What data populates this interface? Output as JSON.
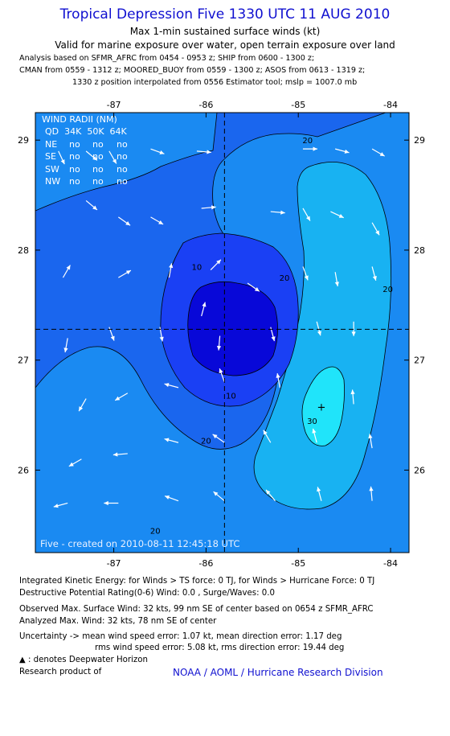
{
  "header": {
    "title": "Tropical Depression Five 1330 UTC 11 AUG 2010",
    "subtitle1": "Max 1-min sustained surface winds (kt)",
    "subtitle2": "Valid for marine exposure over water, open terrain exposure over land",
    "analysis1": "Analysis based on SFMR_AFRC from 0454 - 0953 z; SHIP from 0600 - 1300 z;",
    "analysis2": "CMAN from 0559 - 1312 z; MOORED_BUOY from 0559 - 1300 z; ASOS from 0613 - 1319 z;",
    "analysis3": "1330 z position interpolated from 0556 Estimator tool; mslp = 1007.0 mb"
  },
  "wind_radii": {
    "header1": "WIND RADII (NM)",
    "header2": "QD  34K  50K  64K",
    "rows": [
      {
        "q": "NE",
        "k34": "no",
        "k50": "no",
        "k64": "no"
      },
      {
        "q": "SE",
        "k34": "no",
        "k50": "no",
        "k64": "no"
      },
      {
        "q": "SW",
        "k34": "no",
        "k50": "no",
        "k64": "no"
      },
      {
        "q": "NW",
        "k34": "no",
        "k50": "no",
        "k64": "no"
      }
    ]
  },
  "stamp": "Five - created on 2010-08-11 12:45:18 UTC",
  "chart_data": {
    "type": "heatmap",
    "xlim": [
      -87.85,
      -83.8
    ],
    "ylim": [
      25.25,
      29.25
    ],
    "x_ticks": [
      -87,
      -86,
      -85,
      -84
    ],
    "x_tick_labels": [
      "-87",
      "-86",
      "-85",
      "-84"
    ],
    "y_ticks": [
      26,
      27,
      28,
      29
    ],
    "y_tick_labels": [
      "26",
      "27",
      "28",
      "29"
    ],
    "center": {
      "lon": -85.8,
      "lat": 27.28
    },
    "max_wind_marker": {
      "lon": -84.75,
      "lat": 26.57
    },
    "contour_levels": [
      10,
      20,
      30
    ],
    "contour_labels": [
      {
        "text": "20",
        "lon": -84.9,
        "lat": 29.0
      },
      {
        "text": "10",
        "lon": -86.1,
        "lat": 27.85
      },
      {
        "text": "20",
        "lon": -85.15,
        "lat": 27.75
      },
      {
        "text": "20",
        "lon": -84.03,
        "lat": 27.65
      },
      {
        "text": "10",
        "lon": -85.73,
        "lat": 26.68
      },
      {
        "text": "20",
        "lon": -86.0,
        "lat": 26.27
      },
      {
        "text": "30",
        "lon": -84.85,
        "lat": 26.45
      },
      {
        "text": "20",
        "lon": -86.55,
        "lat": 25.45
      }
    ],
    "level_colors": {
      "lt10": "#0808d8",
      "10_15": "#1a40f4",
      "15_20": "#1a66ee",
      "20_25": "#1a8af2",
      "25_30": "#18b2f2",
      "gt30": "#20e4fa"
    },
    "wind_vectors": [
      {
        "lon": -87.6,
        "lat": 28.9,
        "deg": 155
      },
      {
        "lon": -87.3,
        "lat": 28.9,
        "deg": 130
      },
      {
        "lon": -87.05,
        "lat": 28.9,
        "deg": 150
      },
      {
        "lon": -86.6,
        "lat": 28.92,
        "deg": 110
      },
      {
        "lon": -86.1,
        "lat": 28.9,
        "deg": 95
      },
      {
        "lon": -84.95,
        "lat": 28.92,
        "deg": 90
      },
      {
        "lon": -84.6,
        "lat": 28.92,
        "deg": 105
      },
      {
        "lon": -84.2,
        "lat": 28.92,
        "deg": 120
      },
      {
        "lon": -87.3,
        "lat": 28.45,
        "deg": 130
      },
      {
        "lon": -86.95,
        "lat": 28.3,
        "deg": 125
      },
      {
        "lon": -86.6,
        "lat": 28.3,
        "deg": 120
      },
      {
        "lon": -86.05,
        "lat": 28.38,
        "deg": 85
      },
      {
        "lon": -85.3,
        "lat": 28.35,
        "deg": 95
      },
      {
        "lon": -84.95,
        "lat": 28.38,
        "deg": 150
      },
      {
        "lon": -84.65,
        "lat": 28.35,
        "deg": 115
      },
      {
        "lon": -84.2,
        "lat": 28.25,
        "deg": 150
      },
      {
        "lon": -87.55,
        "lat": 27.75,
        "deg": 30
      },
      {
        "lon": -86.95,
        "lat": 27.75,
        "deg": 60
      },
      {
        "lon": -86.4,
        "lat": 27.75,
        "deg": 10
      },
      {
        "lon": -85.95,
        "lat": 27.82,
        "deg": 45
      },
      {
        "lon": -85.55,
        "lat": 27.7,
        "deg": 125
      },
      {
        "lon": -84.95,
        "lat": 27.85,
        "deg": 160
      },
      {
        "lon": -84.6,
        "lat": 27.8,
        "deg": 170
      },
      {
        "lon": -84.2,
        "lat": 27.85,
        "deg": 165
      },
      {
        "lon": -87.5,
        "lat": 27.2,
        "deg": 190
      },
      {
        "lon": -87.05,
        "lat": 27.3,
        "deg": 160
      },
      {
        "lon": -86.5,
        "lat": 27.3,
        "deg": 170
      },
      {
        "lon": -86.05,
        "lat": 27.4,
        "deg": 15
      },
      {
        "lon": -85.85,
        "lat": 27.22,
        "deg": 185
      },
      {
        "lon": -85.3,
        "lat": 27.3,
        "deg": 165
      },
      {
        "lon": -84.8,
        "lat": 27.35,
        "deg": 165
      },
      {
        "lon": -84.4,
        "lat": 27.35,
        "deg": 180
      },
      {
        "lon": -87.3,
        "lat": 26.65,
        "deg": 210
      },
      {
        "lon": -86.85,
        "lat": 26.7,
        "deg": 240
      },
      {
        "lon": -86.3,
        "lat": 26.75,
        "deg": 285
      },
      {
        "lon": -85.8,
        "lat": 26.8,
        "deg": 340
      },
      {
        "lon": -85.2,
        "lat": 26.75,
        "deg": 350
      },
      {
        "lon": -84.4,
        "lat": 26.6,
        "deg": 355
      },
      {
        "lon": -87.35,
        "lat": 26.1,
        "deg": 240
      },
      {
        "lon": -86.85,
        "lat": 26.15,
        "deg": 265
      },
      {
        "lon": -86.3,
        "lat": 26.25,
        "deg": 285
      },
      {
        "lon": -85.8,
        "lat": 26.25,
        "deg": 305
      },
      {
        "lon": -85.3,
        "lat": 26.25,
        "deg": 330
      },
      {
        "lon": -84.8,
        "lat": 26.25,
        "deg": 345
      },
      {
        "lon": -84.2,
        "lat": 26.2,
        "deg": 350
      },
      {
        "lon": -87.5,
        "lat": 25.7,
        "deg": 255
      },
      {
        "lon": -86.95,
        "lat": 25.7,
        "deg": 270
      },
      {
        "lon": -86.3,
        "lat": 25.72,
        "deg": 290
      },
      {
        "lon": -85.8,
        "lat": 25.72,
        "deg": 310
      },
      {
        "lon": -85.25,
        "lat": 25.72,
        "deg": 320
      },
      {
        "lon": -84.75,
        "lat": 25.72,
        "deg": 345
      },
      {
        "lon": -84.2,
        "lat": 25.72,
        "deg": 355
      }
    ]
  },
  "footer": {
    "ike": "Integrated Kinetic Energy:  for Winds > TS force: 0 TJ,  for Winds > Hurricane Force: 0 TJ",
    "dpr": "Destructive Potential Rating(0-6)   Wind: 0.0 , Surge/Waves: 0.0",
    "obs": "Observed Max. Surface Wind: 32 kts, 99 nm SE of center based on 0654 z SFMR_AFRC",
    "anl": "Analyzed Max. Wind: 32 kts, 78 nm SE of center",
    "unc1": "Uncertainty -> mean wind speed error: 1.07 kt,   mean direction error: 1.17 deg",
    "unc2": "rms wind speed error: 5.08 kt,   rms direction error: 19.44 deg",
    "deepwater_symbol": "▲",
    "deepwater": ": denotes Deepwater Horizon",
    "research": "Research product of",
    "credit": "NOAA / AOML / Hurricane Research Division"
  }
}
